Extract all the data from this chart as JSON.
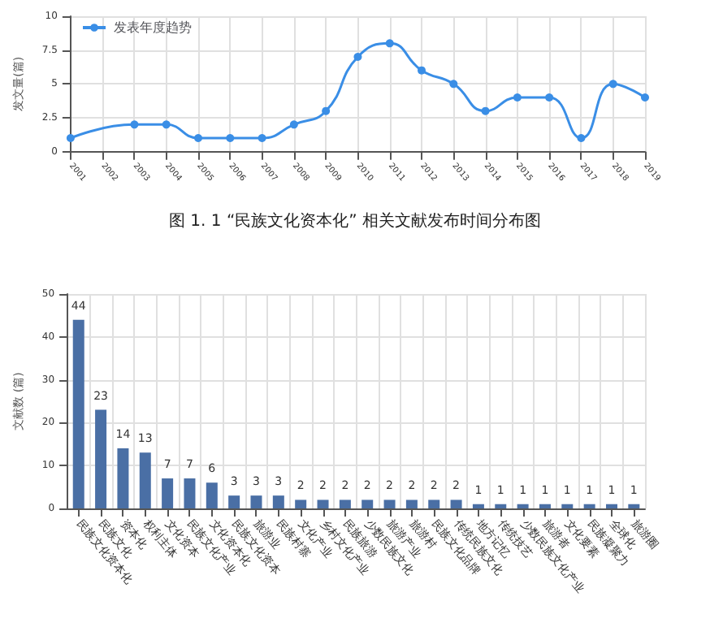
{
  "chart_data": [
    {
      "type": "line",
      "ylabel": "发文量(篇)",
      "categories": [
        "2001",
        "2002",
        "2003",
        "2004",
        "2005",
        "2006",
        "2007",
        "2008",
        "2009",
        "2010",
        "2011",
        "2012",
        "2013",
        "2014",
        "2015",
        "2016",
        "2017",
        "2018",
        "2019"
      ],
      "series": [
        {
          "name": "发表年度趋势",
          "color": "#3a8ee6",
          "values": [
            1,
            null,
            2,
            2,
            1,
            1,
            1,
            2,
            3,
            7,
            8,
            6,
            5,
            3,
            4,
            4,
            1,
            5,
            4
          ]
        }
      ],
      "ylim": [
        0,
        10
      ],
      "yticks": [
        0,
        2.5,
        5,
        7.5,
        10
      ],
      "grid": true,
      "legend": "top left",
      "marker": "circle",
      "line_style": "solid",
      "annotations": [
        "图 1. 1 “民族文化资本化” 相关文献发布时间分布图"
      ]
    },
    {
      "type": "bar",
      "ylabel": "文献数 (篇)",
      "categories": [
        "民族文化资本化",
        "民族文化",
        "资本化",
        "权利主体",
        "文化资本",
        "民族文化产业",
        "文化资本化",
        "民族文化资本",
        "旅游业",
        "民族村寨",
        "文化产业",
        "乡村文化产业",
        "民族旅游",
        "少数民族文化",
        "旅游产业",
        "旅游村",
        "民族文化品牌",
        "传统民族文化",
        "地方记忆",
        "传统技艺",
        "少数民族文化产业",
        "旅游者",
        "文化要素",
        "民族凝聚力",
        "全球化",
        "旅游圈"
      ],
      "values": [
        44,
        23,
        14,
        13,
        7,
        7,
        6,
        3,
        3,
        3,
        2,
        2,
        2,
        2,
        2,
        2,
        2,
        2,
        1,
        1,
        1,
        1,
        1,
        1,
        1,
        1
      ],
      "color": "#4a6fa5",
      "ylim": [
        0,
        50
      ],
      "yticks": [
        0,
        10,
        20,
        30,
        40,
        50
      ],
      "grid": true,
      "data_labels": true
    }
  ]
}
